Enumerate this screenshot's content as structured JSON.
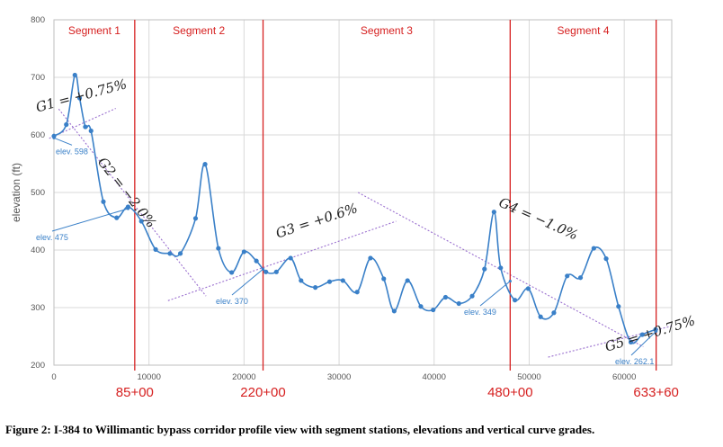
{
  "chart_data": {
    "type": "line",
    "title": "",
    "xlabel": "",
    "ylabel": "elevation (ft)",
    "xlim": [
      0,
      65000
    ],
    "ylim": [
      200,
      800
    ],
    "x_ticks": [
      0,
      10000,
      20000,
      30000,
      40000,
      50000,
      60000
    ],
    "y_ticks": [
      200,
      300,
      400,
      500,
      600,
      700,
      800
    ],
    "grid": true,
    "series": [
      {
        "name": "profile",
        "color": "#3a80c8",
        "x": [
          0,
          1300,
          2200,
          2700,
          3300,
          3900,
          5200,
          6600,
          7800,
          9200,
          10700,
          12200,
          13300,
          14900,
          15900,
          17300,
          18700,
          20000,
          21300,
          22300,
          23400,
          24900,
          26000,
          27500,
          29000,
          30400,
          31900,
          33300,
          34700,
          35800,
          37200,
          38600,
          39900,
          41200,
          42600,
          44000,
          45300,
          46300,
          47000,
          48500,
          49900,
          51200,
          52600,
          54000,
          55400,
          56800,
          58100,
          59400,
          60700,
          61900,
          63300
        ],
        "y": [
          598,
          618,
          704,
          664,
          614,
          607,
          484,
          456,
          475,
          450,
          401,
          394,
          394,
          455,
          549,
          403,
          361,
          397,
          381,
          362,
          362,
          386,
          347,
          335,
          345,
          347,
          327,
          386,
          350,
          294,
          347,
          302,
          296,
          318,
          307,
          320,
          367,
          466,
          369,
          313,
          333,
          284,
          291,
          355,
          352,
          403,
          385,
          302,
          240,
          253,
          262
        ]
      }
    ],
    "segments": [
      "Segment 1",
      "Segment 2",
      "Segment 3",
      "Segment 4"
    ],
    "stations": [
      {
        "x": 8500,
        "label": "85+00"
      },
      {
        "x": 22000,
        "label": "220+00"
      },
      {
        "x": 48000,
        "label": "480+00"
      },
      {
        "x": 63360,
        "label": "633+60"
      }
    ],
    "elevation_labels": [
      {
        "text": "elev. 598",
        "x": 0,
        "y": 598
      },
      {
        "text": "elev. 475",
        "x": 7800,
        "y": 475
      },
      {
        "text": "elev. 370",
        "x": 22000,
        "y": 370
      },
      {
        "text": "elev. 349",
        "x": 48000,
        "y": 349
      },
      {
        "text": "elev. 262.1",
        "x": 63360,
        "y": 262.1
      }
    ],
    "grade_lines": [
      {
        "label": "G1 = +0.75%",
        "x0": -500,
        "y0": 594,
        "x1": 6500,
        "y1": 646
      },
      {
        "label": "G2 = −2.0%",
        "x0": 500,
        "y0": 645,
        "x1": 16000,
        "y1": 320
      },
      {
        "label": "G3 = +0.6%",
        "x0": 12000,
        "y0": 312,
        "x1": 36000,
        "y1": 450
      },
      {
        "label": "G4 = −1.0%",
        "x0": 32000,
        "y0": 500,
        "x1": 62000,
        "y1": 232
      },
      {
        "label": "G5 = +0.75%",
        "x0": 52000,
        "y0": 214,
        "x1": 65000,
        "y1": 268
      }
    ]
  },
  "caption": "Figure 2:  I-384 to Willimantic bypass corridor profile view with segment stations, elevations and vertical curve grades."
}
